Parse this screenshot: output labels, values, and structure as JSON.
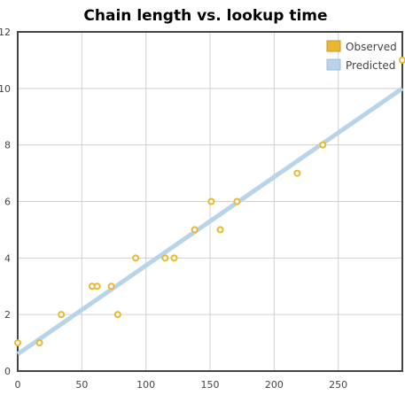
{
  "chart_data": {
    "type": "scatter",
    "title": "Chain length vs. lookup time",
    "xlabel": "",
    "ylabel": "",
    "xlim": [
      0,
      300
    ],
    "ylim": [
      0,
      12
    ],
    "x_ticks": [
      0,
      50,
      100,
      150,
      200,
      250
    ],
    "y_ticks": [
      0,
      2,
      4,
      6,
      8,
      10,
      12
    ],
    "grid": true,
    "legend_position": "top-right",
    "series": [
      {
        "name": "Observed",
        "kind": "scatter",
        "color": "#e8b830",
        "points": [
          [
            0,
            1
          ],
          [
            17,
            1
          ],
          [
            34,
            2
          ],
          [
            58,
            3
          ],
          [
            62,
            3
          ],
          [
            73,
            3
          ],
          [
            78,
            2
          ],
          [
            92,
            4
          ],
          [
            115,
            4
          ],
          [
            122,
            4
          ],
          [
            138,
            5
          ],
          [
            151,
            6
          ],
          [
            158,
            5
          ],
          [
            171,
            6
          ],
          [
            218,
            7
          ],
          [
            238,
            8
          ],
          [
            300,
            11
          ]
        ]
      },
      {
        "name": "Predicted",
        "kind": "line",
        "color": "#b8d4ea",
        "points": [
          [
            0,
            0.6
          ],
          [
            300,
            10.0
          ]
        ]
      }
    ]
  }
}
